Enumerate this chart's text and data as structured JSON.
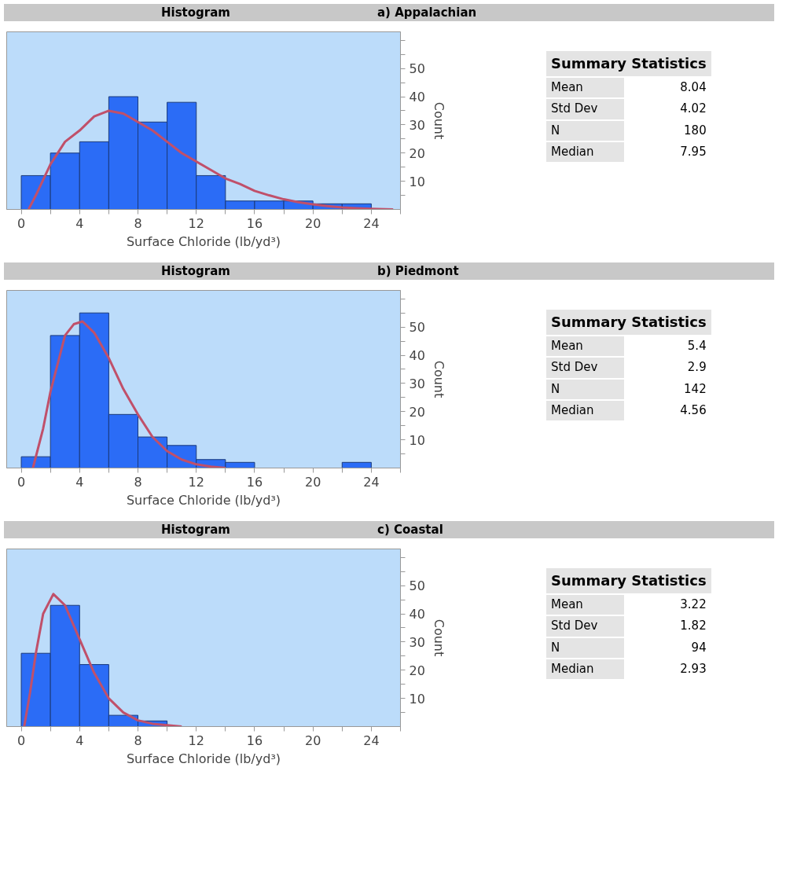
{
  "chart_data": [
    {
      "type": "histogram",
      "title": "Histogram",
      "subtitle": "a) Appalachian",
      "xlabel": "Surface Chloride (lb/yd³)",
      "ylabel": "Count",
      "color": "#2b6cf6",
      "bins": [
        0,
        2,
        4,
        6,
        8,
        10,
        12,
        14,
        16,
        18,
        20,
        22,
        24
      ],
      "values": [
        12,
        20,
        24,
        40,
        31,
        38,
        12,
        3,
        3,
        3,
        2,
        2
      ],
      "series": [
        {
          "type": "line",
          "color": "#c0506a",
          "x": [
            0.5,
            1,
            2,
            3,
            4,
            5,
            6,
            7,
            8,
            9,
            10,
            11,
            12,
            13,
            14,
            15,
            16,
            17,
            18,
            19,
            20,
            21,
            22,
            23,
            24,
            25.5
          ],
          "values": [
            0,
            5,
            16,
            24,
            28,
            33,
            35,
            34,
            31,
            28,
            24,
            20,
            17,
            14,
            11,
            9,
            6.6,
            5,
            3.6,
            2.6,
            1.8,
            1.2,
            0.7,
            0.4,
            0.2,
            0
          ]
        }
      ],
      "xlim": [
        -1,
        26
      ],
      "ylim": [
        0,
        63
      ],
      "xticks": [
        0,
        {
          "value": 2,
          "label": null
        },
        4,
        {
          "value": 6,
          "label": null
        },
        8,
        {
          "value": 10,
          "label": null
        },
        12,
        {
          "value": 14,
          "label": null
        },
        16,
        {
          "value": 18,
          "label": null
        },
        20,
        {
          "value": 22,
          "label": null
        },
        24,
        {
          "value": 26,
          "label": null
        }
      ],
      "yticks": [
        {
          "value": 5,
          "label": null
        },
        10,
        {
          "value": 15,
          "label": null
        },
        20,
        {
          "value": 25,
          "label": null
        },
        30,
        {
          "value": 35,
          "label": null
        },
        40,
        {
          "value": 45,
          "label": null
        },
        50,
        {
          "value": 55,
          "label": null
        },
        {
          "value": 60,
          "label": null
        }
      ],
      "grid": false,
      "annotations": [
        "Summary Statistics",
        "Mean",
        "8.04",
        "Std Dev",
        "4.02",
        "N",
        "180",
        "Median",
        "7.95"
      ]
    },
    {
      "type": "histogram",
      "title": "Histogram",
      "subtitle": "b) Piedmont",
      "xlabel": "Surface Chloride (lb/yd³)",
      "ylabel": "Count",
      "color": "#2b6cf6",
      "bins": [
        0,
        2,
        4,
        6,
        8,
        10,
        12,
        14,
        16,
        18,
        20,
        22,
        24
      ],
      "values": [
        4,
        47,
        55,
        19,
        11,
        8,
        3,
        2,
        0,
        0,
        0,
        2
      ],
      "series": [
        {
          "type": "line",
          "color": "#c0506a",
          "x": [
            0.8,
            1.5,
            2,
            3,
            3.6,
            4.2,
            5,
            6,
            7,
            8,
            9,
            10,
            11,
            12,
            13,
            14
          ],
          "values": [
            0,
            14,
            27,
            47,
            51,
            52,
            48,
            39,
            28,
            19,
            11,
            6,
            3,
            1.3,
            0.5,
            0
          ]
        }
      ],
      "xlim": [
        -1,
        26
      ],
      "ylim": [
        0,
        63
      ],
      "xticks": [
        0,
        {
          "value": 2,
          "label": null
        },
        4,
        {
          "value": 6,
          "label": null
        },
        8,
        {
          "value": 10,
          "label": null
        },
        12,
        {
          "value": 14,
          "label": null
        },
        16,
        {
          "value": 18,
          "label": null
        },
        20,
        {
          "value": 22,
          "label": null
        },
        24,
        {
          "value": 26,
          "label": null
        }
      ],
      "yticks": [
        {
          "value": 5,
          "label": null
        },
        10,
        {
          "value": 15,
          "label": null
        },
        20,
        {
          "value": 25,
          "label": null
        },
        30,
        {
          "value": 35,
          "label": null
        },
        40,
        {
          "value": 45,
          "label": null
        },
        50,
        {
          "value": 55,
          "label": null
        },
        {
          "value": 60,
          "label": null
        }
      ],
      "grid": false,
      "annotations": [
        "Summary Statistics",
        "Mean",
        "5.4",
        "Std Dev",
        "2.9",
        "N",
        "142",
        "Median",
        "4.56"
      ]
    },
    {
      "type": "histogram",
      "title": "Histogram",
      "subtitle": "c) Coastal",
      "xlabel": "Surface Chloride (lb/yd³)",
      "ylabel": "Count",
      "color": "#2b6cf6",
      "bins": [
        0,
        2,
        4,
        6,
        8,
        10,
        12,
        14,
        16,
        18,
        20,
        22,
        24
      ],
      "values": [
        26,
        43,
        22,
        4,
        2,
        0,
        0,
        0,
        0,
        0,
        0,
        0
      ],
      "series": [
        {
          "type": "line",
          "color": "#c0506a",
          "x": [
            0.2,
            0.6,
            1,
            1.5,
            2.2,
            3,
            4,
            5,
            6,
            7,
            8,
            9,
            10,
            11
          ],
          "values": [
            0,
            12,
            26,
            40,
            47,
            43,
            31,
            19,
            10,
            5,
            2.2,
            1,
            0.5,
            0
          ]
        }
      ],
      "xlim": [
        -1,
        26
      ],
      "ylim": [
        0,
        63
      ],
      "xticks": [
        0,
        {
          "value": 2,
          "label": null
        },
        4,
        {
          "value": 6,
          "label": null
        },
        8,
        {
          "value": 10,
          "label": null
        },
        12,
        {
          "value": 14,
          "label": null
        },
        16,
        {
          "value": 18,
          "label": null
        },
        20,
        {
          "value": 22,
          "label": null
        },
        24,
        {
          "value": 26,
          "label": null
        }
      ],
      "yticks": [
        {
          "value": 5,
          "label": null
        },
        10,
        {
          "value": 15,
          "label": null
        },
        20,
        {
          "value": 25,
          "label": null
        },
        30,
        {
          "value": 35,
          "label": null
        },
        40,
        {
          "value": 45,
          "label": null
        },
        50,
        {
          "value": 55,
          "label": null
        },
        {
          "value": 60,
          "label": null
        }
      ],
      "grid": false,
      "annotations": [
        "Summary Statistics",
        "Mean",
        "3.22",
        "Std Dev",
        "1.82",
        "N",
        "94",
        "Median",
        "2.93"
      ]
    }
  ]
}
